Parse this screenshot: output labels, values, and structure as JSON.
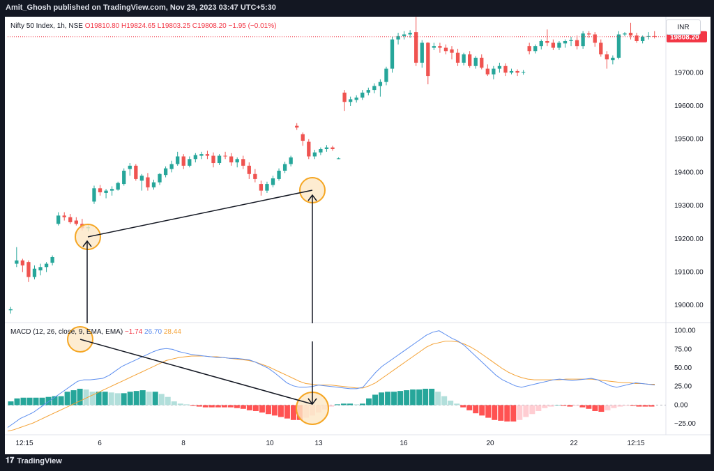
{
  "header": {
    "published": "Amit_Ghosh published on TradingView.com, Nov 29, 2023 03:47 UTC+5:30"
  },
  "footer": {
    "brand": "TradingView"
  },
  "currency": "INR",
  "colors": {
    "up": "#26a69a",
    "down": "#ef5350",
    "macd": "#5b8def",
    "signal": "#f4a236",
    "hist_up_strong": "#26a69a",
    "hist_up_weak": "#b2dfdb",
    "hist_down_strong": "#ff5252",
    "hist_down_weak": "#ffcdd2",
    "annotation": "#f5a623",
    "last_price_bg": "#f23645"
  },
  "chart_data": [
    {
      "type": "candlestick",
      "title": "Nifty 50 Index, 1h, NSE",
      "ohlc_legend": {
        "open": "O19810.80",
        "high": "H19824.65",
        "low": "L19803.25",
        "close": "C19808.20",
        "change": "−1.95 (−0.01%)"
      },
      "last_price": "19808.20",
      "ylim": [
        18950,
        19860
      ],
      "y_ticks": [
        19000,
        19100,
        19200,
        19300,
        19400,
        19500,
        19600,
        19700
      ],
      "y_tick_labels": [
        "19000.00",
        "19100.00",
        "19200.00",
        "19300.00",
        "19400.00",
        "19500.00",
        "19600.00",
        "19700.00"
      ],
      "x_tick_labels": [
        "12:15",
        "6",
        "8",
        "10",
        "13",
        "16",
        "20",
        "22",
        "12:15"
      ],
      "candles": [
        [
          18985,
          18995,
          18975,
          18988
        ],
        [
          19125,
          19175,
          19115,
          19135
        ],
        [
          19135,
          19140,
          19100,
          19120
        ],
        [
          19130,
          19135,
          19070,
          19085
        ],
        [
          19085,
          19120,
          19078,
          19110
        ],
        [
          19105,
          19125,
          19090,
          19115
        ],
        [
          19115,
          19130,
          19100,
          19125
        ],
        [
          19128,
          19150,
          19120,
          19145
        ],
        [
          19245,
          19280,
          19240,
          19270
        ],
        [
          19270,
          19280,
          19255,
          19265
        ],
        [
          19265,
          19275,
          19245,
          19250
        ],
        [
          19255,
          19265,
          19240,
          19245
        ],
        [
          19245,
          19260,
          19225,
          19232
        ],
        [
          19232,
          19245,
          19222,
          19235
        ],
        [
          19312,
          19360,
          19305,
          19352
        ],
        [
          19352,
          19362,
          19330,
          19340
        ],
        [
          19338,
          19350,
          19322,
          19345
        ],
        [
          19345,
          19358,
          19330,
          19350
        ],
        [
          19348,
          19372,
          19345,
          19368
        ],
        [
          19365,
          19412,
          19360,
          19405
        ],
        [
          19410,
          19428,
          19390,
          19420
        ],
        [
          19420,
          19425,
          19375,
          19380
        ],
        [
          19375,
          19395,
          19345,
          19390
        ],
        [
          19385,
          19398,
          19345,
          19355
        ],
        [
          19355,
          19378,
          19348,
          19370
        ],
        [
          19370,
          19398,
          19362,
          19395
        ],
        [
          19392,
          19418,
          19385,
          19412
        ],
        [
          19410,
          19435,
          19400,
          19425
        ],
        [
          19425,
          19462,
          19420,
          19448
        ],
        [
          19448,
          19455,
          19410,
          19420
        ],
        [
          19420,
          19448,
          19415,
          19440
        ],
        [
          19440,
          19458,
          19430,
          19452
        ],
        [
          19450,
          19462,
          19440,
          19455
        ],
        [
          19455,
          19465,
          19440,
          19450
        ],
        [
          19450,
          19460,
          19415,
          19428
        ],
        [
          19428,
          19455,
          19422,
          19450
        ],
        [
          19450,
          19462,
          19440,
          19448
        ],
        [
          19448,
          19458,
          19420,
          19430
        ],
        [
          19430,
          19445,
          19415,
          19440
        ],
        [
          19440,
          19450,
          19410,
          19420
        ],
        [
          19420,
          19430,
          19380,
          19395
        ],
        [
          19395,
          19410,
          19370,
          19380
        ],
        [
          19365,
          19375,
          19330,
          19345
        ],
        [
          19345,
          19372,
          19338,
          19365
        ],
        [
          19362,
          19390,
          19355,
          19382
        ],
        [
          19380,
          19412,
          19375,
          19405
        ],
        [
          19405,
          19432,
          19398,
          19425
        ],
        [
          19425,
          19450,
          19418,
          19445
        ],
        [
          19540,
          19548,
          19528,
          19535
        ],
        [
          19515,
          19520,
          19480,
          19495
        ],
        [
          19492,
          19500,
          19440,
          19448
        ],
        [
          19448,
          19468,
          19440,
          19460
        ],
        [
          19460,
          19475,
          19452,
          19470
        ],
        [
          19470,
          19482,
          19462,
          19475
        ],
        [
          19475,
          19480,
          19465,
          19470
        ],
        [
          19442,
          19445,
          19440,
          19442
        ],
        [
          19640,
          19648,
          19585,
          19612
        ],
        [
          19612,
          19628,
          19600,
          19620
        ],
        [
          19618,
          19632,
          19610,
          19625
        ],
        [
          19625,
          19648,
          19618,
          19640
        ],
        [
          19640,
          19655,
          19632,
          19648
        ],
        [
          19648,
          19668,
          19638,
          19660
        ],
        [
          19660,
          19680,
          19628,
          19672
        ],
        [
          19672,
          19718,
          19662,
          19712
        ],
        [
          19712,
          19808,
          19700,
          19800
        ],
        [
          19800,
          19820,
          19785,
          19810
        ],
        [
          19810,
          19825,
          19800,
          19815
        ],
        [
          19815,
          19828,
          19805,
          19820
        ],
        [
          19822,
          19868,
          19720,
          19730
        ],
        [
          19730,
          19798,
          19715,
          19790
        ],
        [
          19790,
          19792,
          19665,
          19690
        ],
        [
          19775,
          19790,
          19768,
          19780
        ],
        [
          19780,
          19790,
          19760,
          19775
        ],
        [
          19775,
          19785,
          19755,
          19765
        ],
        [
          19770,
          19780,
          19740,
          19760
        ],
        [
          19760,
          19772,
          19720,
          19730
        ],
        [
          19730,
          19760,
          19722,
          19755
        ],
        [
          19755,
          19765,
          19715,
          19720
        ],
        [
          19720,
          19750,
          19712,
          19745
        ],
        [
          19745,
          19755,
          19710,
          19715
        ],
        [
          19712,
          19725,
          19690,
          19695
        ],
        [
          19695,
          19720,
          19680,
          19712
        ],
        [
          19712,
          19730,
          19700,
          19720
        ],
        [
          19720,
          19728,
          19690,
          19700
        ],
        [
          19700,
          19712,
          19695,
          19705
        ],
        [
          19705,
          19710,
          19690,
          19700
        ],
        [
          19700,
          19708,
          19694,
          19702
        ],
        [
          19780,
          19790,
          19755,
          19765
        ],
        [
          19765,
          19785,
          19758,
          19780
        ],
        [
          19780,
          19800,
          19770,
          19795
        ],
        [
          19795,
          19830,
          19780,
          19790
        ],
        [
          19790,
          19800,
          19768,
          19775
        ],
        [
          19775,
          19795,
          19768,
          19790
        ],
        [
          19788,
          19800,
          19775,
          19795
        ],
        [
          19795,
          19808,
          19780,
          19798
        ],
        [
          19798,
          19812,
          19770,
          19780
        ],
        [
          19780,
          19825,
          19772,
          19818
        ],
        [
          19818,
          19825,
          19805,
          19815
        ],
        [
          19815,
          19822,
          19778,
          19790
        ],
        [
          19790,
          19800,
          19748,
          19755
        ],
        [
          19755,
          19765,
          19712,
          19740
        ],
        [
          19738,
          19752,
          19725,
          19745
        ],
        [
          19745,
          19825,
          19740,
          19815
        ],
        [
          19815,
          19822,
          19810,
          19818
        ],
        [
          19820,
          19850,
          19800,
          19812
        ],
        [
          19812,
          19820,
          19790,
          19795
        ],
        [
          19795,
          19812,
          19788,
          19808
        ],
        [
          19808,
          19822,
          19800,
          19810
        ],
        [
          19810,
          19825,
          19803,
          19808
        ]
      ]
    },
    {
      "type": "macd",
      "legend_title": "MACD (12, 26, close, 9, EMA, EMA)",
      "hist_value": "−1.74",
      "macd_value": "26.70",
      "signal_value": "28.44",
      "ylim": [
        -38,
        110
      ],
      "y_ticks": [
        100,
        75,
        50,
        25,
        0,
        -25
      ],
      "y_tick_labels": [
        "100.00",
        "75.00",
        "50.00",
        "25.00",
        "0.00",
        "−25.00"
      ],
      "macd_line": [
        -30,
        -24,
        -18,
        -14,
        -10,
        -4,
        2,
        8,
        14,
        20,
        26,
        32,
        34,
        34,
        35,
        36,
        40,
        46,
        52,
        56,
        60,
        64,
        68,
        72,
        75,
        76,
        75,
        72,
        70,
        68,
        67,
        66,
        65,
        64,
        64,
        63,
        63,
        62,
        61,
        58,
        54,
        50,
        44,
        37,
        30,
        26,
        24,
        24,
        25,
        27,
        26,
        25,
        24,
        23,
        22,
        22,
        24,
        34,
        44,
        52,
        58,
        64,
        70,
        76,
        82,
        88,
        94,
        98,
        100,
        95,
        90,
        86,
        80,
        72,
        64,
        56,
        48,
        40,
        34,
        30,
        26,
        24,
        26,
        28,
        30,
        32,
        34,
        35,
        34,
        33,
        34,
        35,
        36,
        34,
        30,
        26,
        24,
        26,
        28,
        30,
        29,
        28,
        27
      ],
      "signal_line": [
        -35,
        -33,
        -30,
        -27,
        -24,
        -20,
        -16,
        -12,
        -8,
        -4,
        0,
        4,
        8,
        12,
        16,
        20,
        24,
        28,
        32,
        36,
        40,
        44,
        48,
        52,
        56,
        60,
        62,
        64,
        65,
        66,
        66,
        66,
        65,
        65,
        64,
        63,
        62,
        61,
        60,
        58,
        55,
        52,
        48,
        44,
        40,
        36,
        32,
        29,
        28,
        27,
        27,
        27,
        26,
        25,
        24,
        23,
        23,
        26,
        30,
        36,
        42,
        48,
        54,
        60,
        66,
        72,
        78,
        82,
        84,
        86,
        86,
        85,
        82,
        78,
        73,
        67,
        61,
        55,
        49,
        44,
        40,
        37,
        35,
        34,
        34,
        34,
        34,
        34,
        35,
        35,
        35,
        35,
        35,
        34,
        33,
        32,
        31,
        30,
        30,
        29,
        29,
        28,
        28
      ],
      "histogram": [
        5,
        9,
        10,
        10,
        10,
        10,
        11,
        12,
        12,
        18,
        20,
        22,
        21,
        18,
        18,
        18,
        17,
        16,
        16,
        18,
        19,
        20,
        18,
        18,
        15,
        11,
        5,
        2,
        1,
        -1,
        -2,
        -3,
        -3,
        -3,
        -3,
        -3,
        -4,
        -5,
        -7,
        -8,
        -10,
        -12,
        -14,
        -16,
        -18,
        -20,
        -20,
        -17,
        -14,
        -10,
        -6,
        -2,
        1,
        2,
        2,
        1,
        2,
        9,
        14,
        17,
        18,
        18,
        19,
        20,
        21,
        21,
        22,
        22,
        18,
        12,
        6,
        2,
        -3,
        -7,
        -11,
        -14,
        -17,
        -20,
        -21,
        -22,
        -22,
        -20,
        -16,
        -12,
        -8,
        -4,
        -2,
        0,
        -1,
        -2,
        -1,
        -3,
        -5,
        -8,
        -9,
        -7,
        -4,
        -2,
        -1,
        -1,
        -2,
        -2,
        -2
      ]
    }
  ]
}
